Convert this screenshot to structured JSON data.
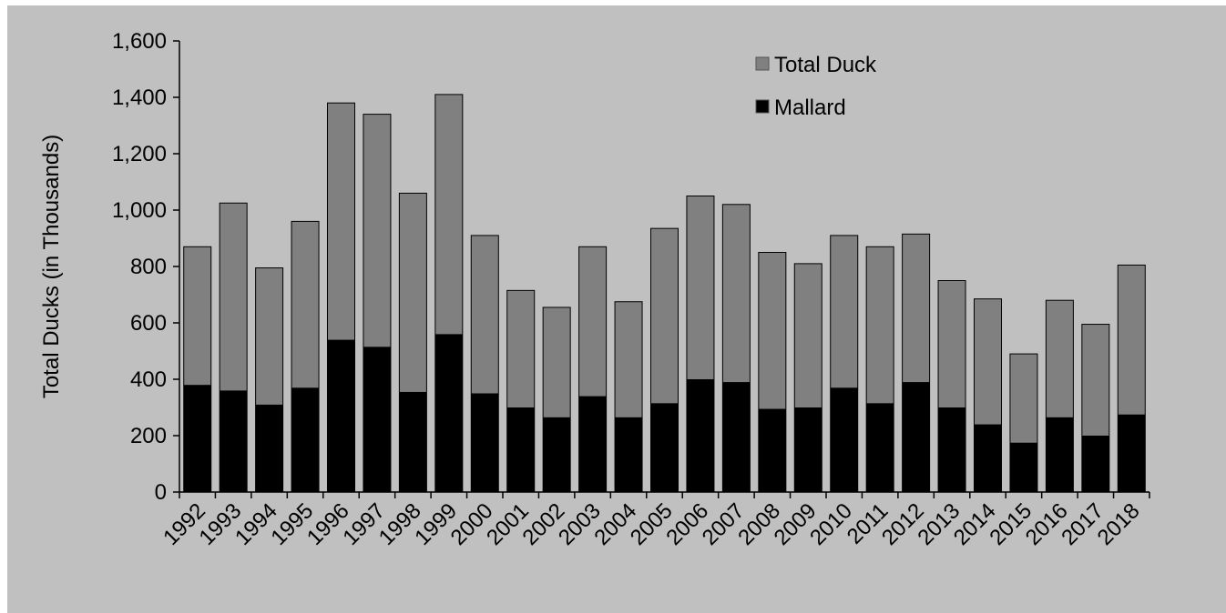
{
  "chart_data": {
    "type": "bar",
    "overlap": true,
    "y_label": "Total Ducks (in Thousands)",
    "categories": [
      "1992",
      "1993",
      "1994",
      "1995",
      "1996",
      "1997",
      "1998",
      "1999",
      "2000",
      "2001",
      "2002",
      "2003",
      "2004",
      "2005",
      "2006",
      "2007",
      "2008",
      "2009",
      "2010",
      "2011",
      "2012",
      "2013",
      "2014",
      "2015",
      "2016",
      "2017",
      "2018"
    ],
    "series": [
      {
        "name": "Total Duck",
        "color": "#808080",
        "values": [
          870,
          1025,
          795,
          960,
          1380,
          1340,
          1060,
          1410,
          910,
          715,
          655,
          870,
          675,
          935,
          1050,
          1020,
          850,
          810,
          910,
          870,
          915,
          750,
          685,
          490,
          680,
          595,
          805
        ]
      },
      {
        "name": "Mallard",
        "color": "#000000",
        "values": [
          380,
          360,
          310,
          370,
          540,
          515,
          355,
          560,
          350,
          300,
          265,
          340,
          265,
          315,
          400,
          390,
          295,
          300,
          370,
          315,
          390,
          300,
          240,
          175,
          265,
          200,
          275
        ]
      }
    ],
    "ylim": [
      0,
      1600
    ],
    "yticks": [
      0,
      200,
      400,
      600,
      800,
      {
        "value": 1000,
        "label": "1,000"
      },
      {
        "value": 1200,
        "label": "1,200"
      },
      {
        "value": 1400,
        "label": "1,400"
      },
      {
        "value": 1600,
        "label": "1,600"
      }
    ],
    "legend": "top-right"
  }
}
